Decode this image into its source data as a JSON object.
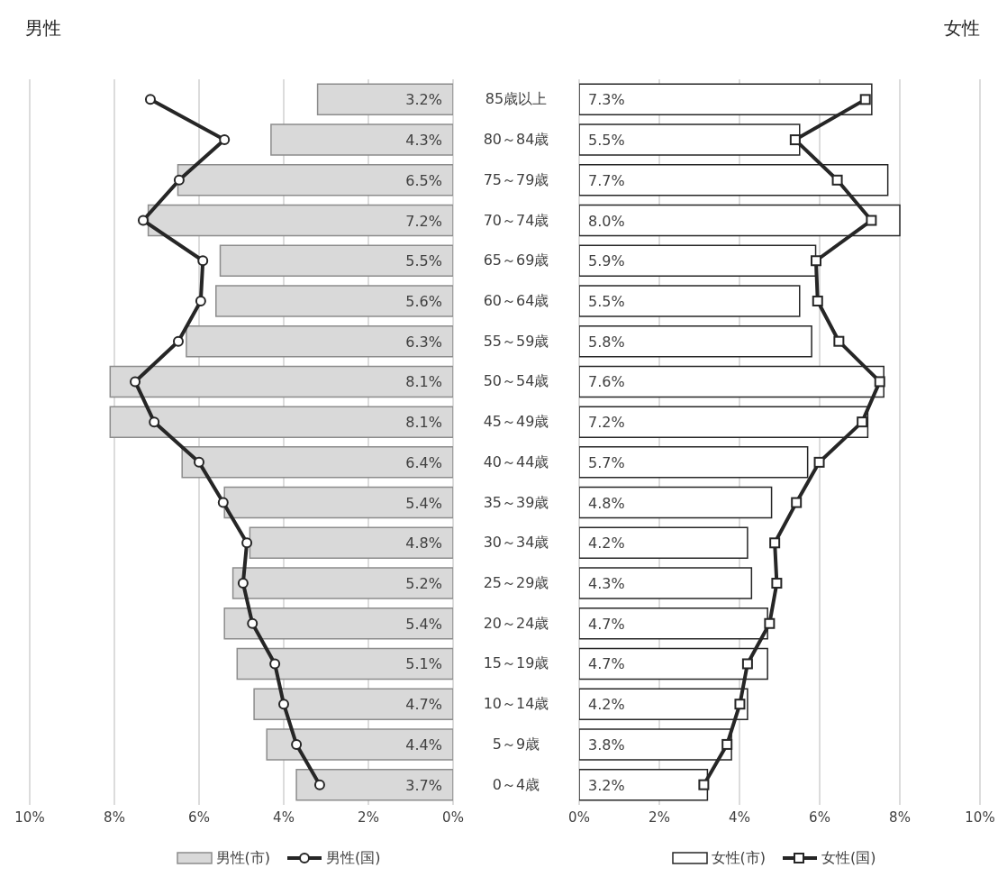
{
  "chart_data": [
    {
      "type": "bar",
      "orientation": "horizontal",
      "title": "男性",
      "categories": [
        "85歳以上",
        "80～84歳",
        "75～79歳",
        "70～74歳",
        "65～69歳",
        "60～64歳",
        "55～59歳",
        "50～54歳",
        "45～49歳",
        "40～44歳",
        "35～39歳",
        "30～34歳",
        "25～29歳",
        "20～24歳",
        "15～19歳",
        "10～14歳",
        "5～9歳",
        "0～4歳"
      ],
      "series": [
        {
          "name": "男性(市)",
          "color": "#d9d9d9",
          "values": [
            3.2,
            4.3,
            6.5,
            7.2,
            5.5,
            5.6,
            6.3,
            8.1,
            8.1,
            6.4,
            5.4,
            4.8,
            5.2,
            5.4,
            5.1,
            4.7,
            4.4,
            3.7
          ],
          "value_labels": [
            "3.2%",
            "4.3%",
            "6.5%",
            "7.2%",
            "5.5%",
            "5.6%",
            "6.3%",
            "8.1%",
            "8.1%",
            "6.4%",
            "5.4%",
            "4.8%",
            "5.2%",
            "5.4%",
            "5.1%",
            "4.7%",
            "4.4%",
            "3.7%"
          ]
        },
        {
          "name": "男性(国)",
          "type": "line",
          "color": "#262626",
          "marker": "circle",
          "values": [
            7.15,
            5.4,
            6.47,
            7.32,
            5.91,
            5.96,
            6.49,
            7.51,
            7.06,
            6.0,
            5.43,
            4.87,
            4.96,
            4.74,
            4.21,
            4.0,
            3.7,
            3.15
          ]
        }
      ],
      "xlim": [
        10,
        0
      ],
      "xticks": [
        {
          "value": 10,
          "label": "10%"
        },
        {
          "value": 8,
          "label": "8%"
        },
        {
          "value": 6,
          "label": "6%"
        },
        {
          "value": 4,
          "label": "4%"
        },
        {
          "value": 2,
          "label": "2%"
        },
        {
          "value": 0,
          "label": "0%"
        }
      ],
      "grid": "x",
      "legend": "bottom"
    },
    {
      "type": "bar",
      "orientation": "horizontal",
      "title": "女性",
      "categories": [
        null,
        null,
        null,
        null,
        null,
        null,
        null,
        null,
        null,
        null,
        null,
        null,
        null,
        null,
        null,
        null,
        null,
        null
      ],
      "series": [
        {
          "name": "女性(市)",
          "color": "#ffffff",
          "values": [
            7.3,
            5.5,
            7.7,
            8.0,
            5.9,
            5.5,
            5.8,
            7.6,
            7.2,
            5.7,
            4.8,
            4.2,
            4.3,
            4.7,
            4.7,
            4.2,
            3.8,
            3.2
          ],
          "value_labels": [
            "7.3%",
            "5.5%",
            "7.7%",
            "8.0%",
            "5.9%",
            "5.5%",
            "5.8%",
            "7.6%",
            "7.2%",
            "5.7%",
            "4.8%",
            "4.2%",
            "4.3%",
            "4.7%",
            "4.7%",
            "4.2%",
            "3.8%",
            "3.2%"
          ]
        },
        {
          "name": "女性(国)",
          "type": "line",
          "color": "#262626",
          "marker": "square",
          "values": [
            7.14,
            5.39,
            6.44,
            7.29,
            5.91,
            5.95,
            6.48,
            7.5,
            7.06,
            5.99,
            5.42,
            4.88,
            4.93,
            4.75,
            4.2,
            4.01,
            3.69,
            3.11
          ]
        }
      ],
      "xlim": [
        0,
        10
      ],
      "xticks": [
        {
          "value": 0,
          "label": "0%"
        },
        {
          "value": 2,
          "label": "2%"
        },
        {
          "value": 4,
          "label": "4%"
        },
        {
          "value": 6,
          "label": "6%"
        },
        {
          "value": 8,
          "label": "8%"
        },
        {
          "value": 10,
          "label": "10%"
        }
      ],
      "grid": "x",
      "legend": "bottom",
      "tick_labels": "x"
    }
  ]
}
